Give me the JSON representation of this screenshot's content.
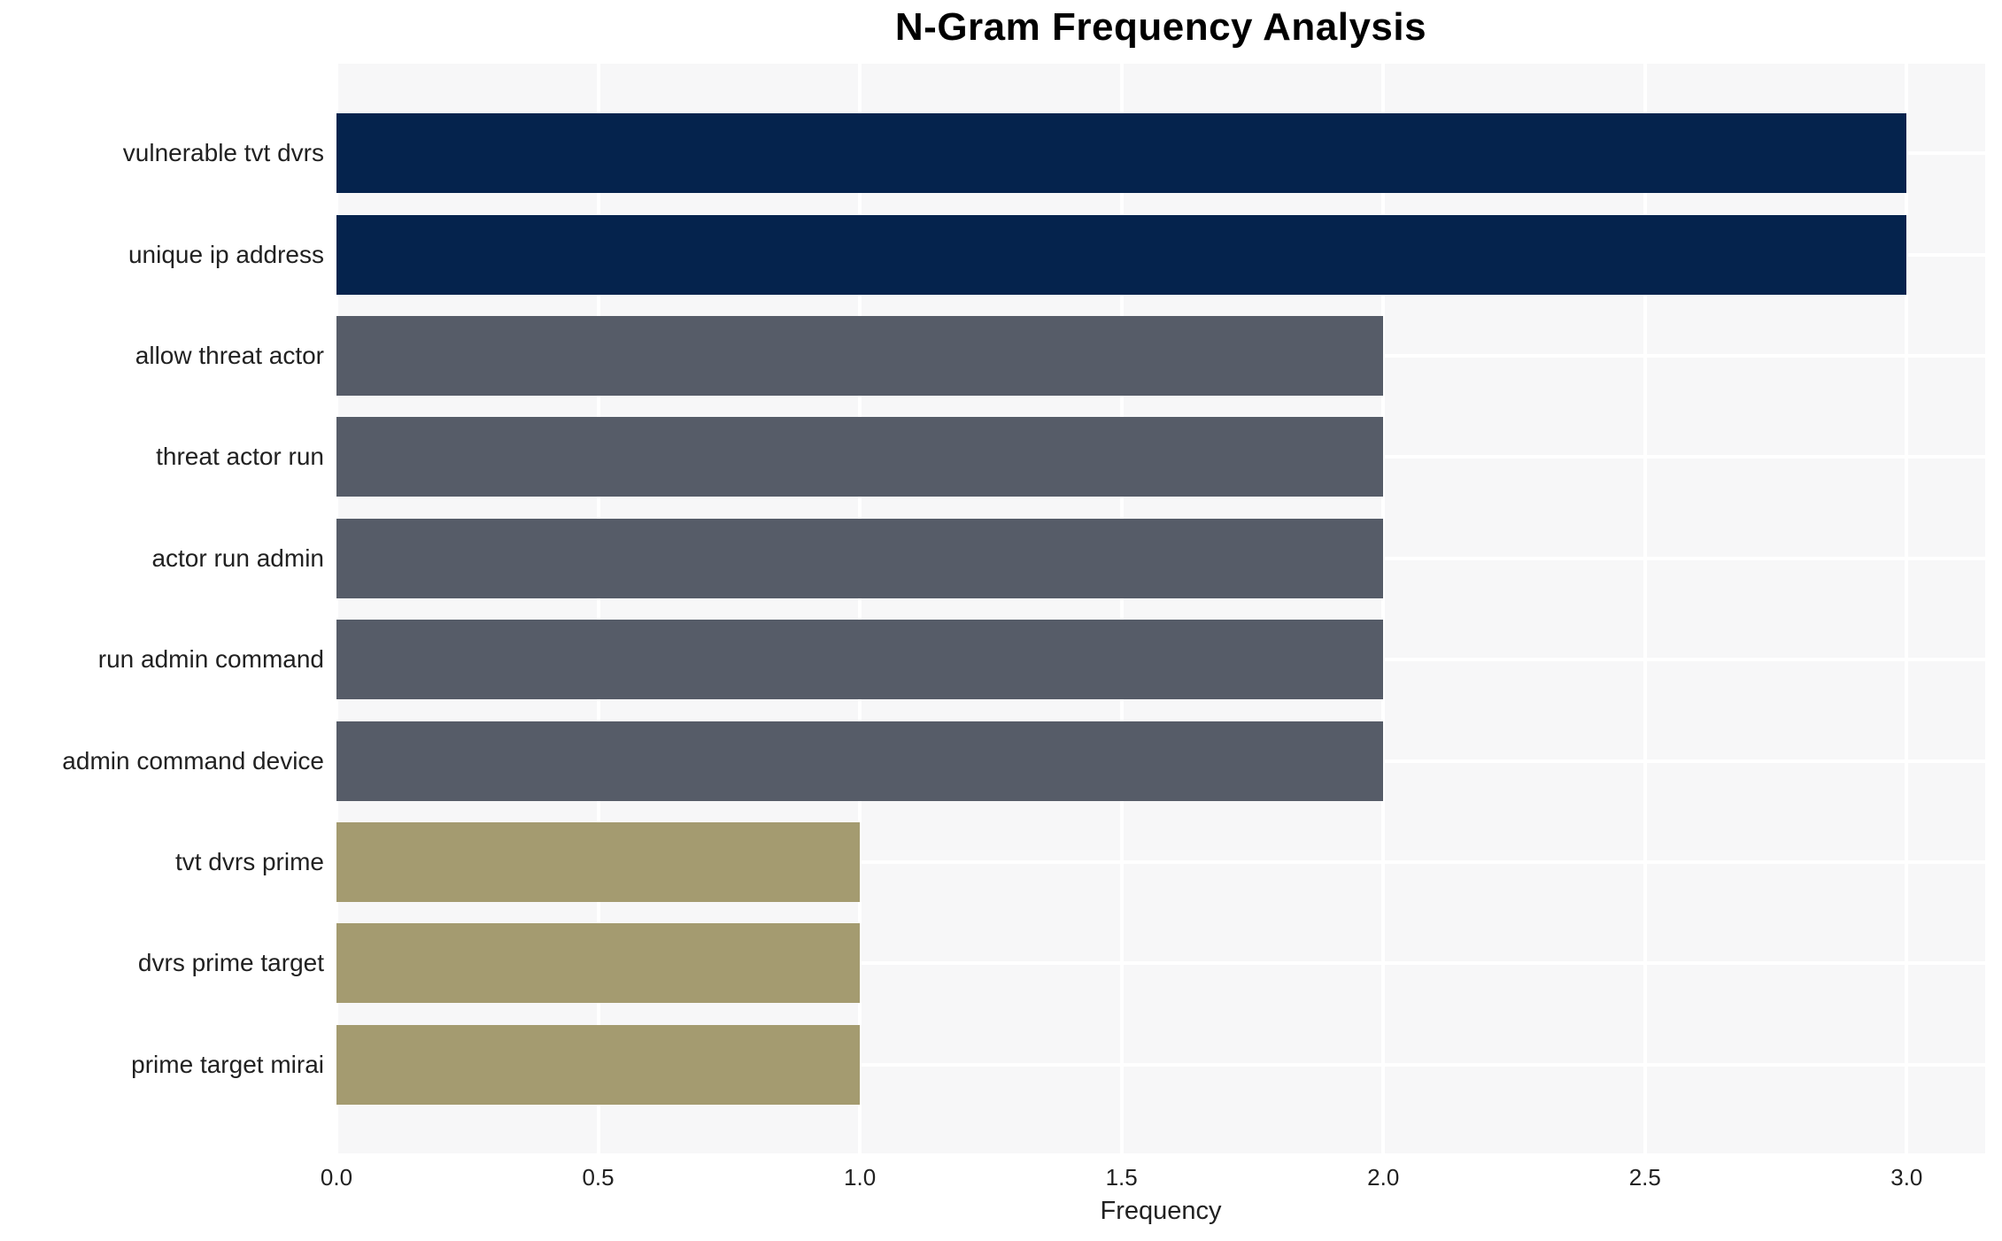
{
  "chart_data": {
    "type": "bar",
    "orientation": "horizontal",
    "title": "N-Gram Frequency Analysis",
    "xlabel": "Frequency",
    "ylabel": "",
    "categories": [
      "vulnerable tvt dvrs",
      "unique ip address",
      "allow threat actor",
      "threat actor run",
      "actor run admin",
      "run admin command",
      "admin command device",
      "tvt dvrs prime",
      "dvrs prime target",
      "prime target mirai"
    ],
    "values": [
      3,
      3,
      2,
      2,
      2,
      2,
      2,
      1,
      1,
      1
    ],
    "xlim": [
      0,
      3.15
    ],
    "xticks": [
      0.0,
      0.5,
      1.0,
      1.5,
      2.0,
      2.5,
      3.0
    ],
    "xtick_labels": [
      "0.0",
      "0.5",
      "1.0",
      "1.5",
      "2.0",
      "2.5",
      "3.0"
    ],
    "grid": true,
    "legend": false,
    "colors": {
      "bar_value_3": "#05234d",
      "bar_value_2": "#565c68",
      "bar_value_1": "#a49b70",
      "plot_background": "#f7f7f8",
      "gridline": "#ffffff",
      "text": "#212121",
      "title": "#000000"
    }
  }
}
